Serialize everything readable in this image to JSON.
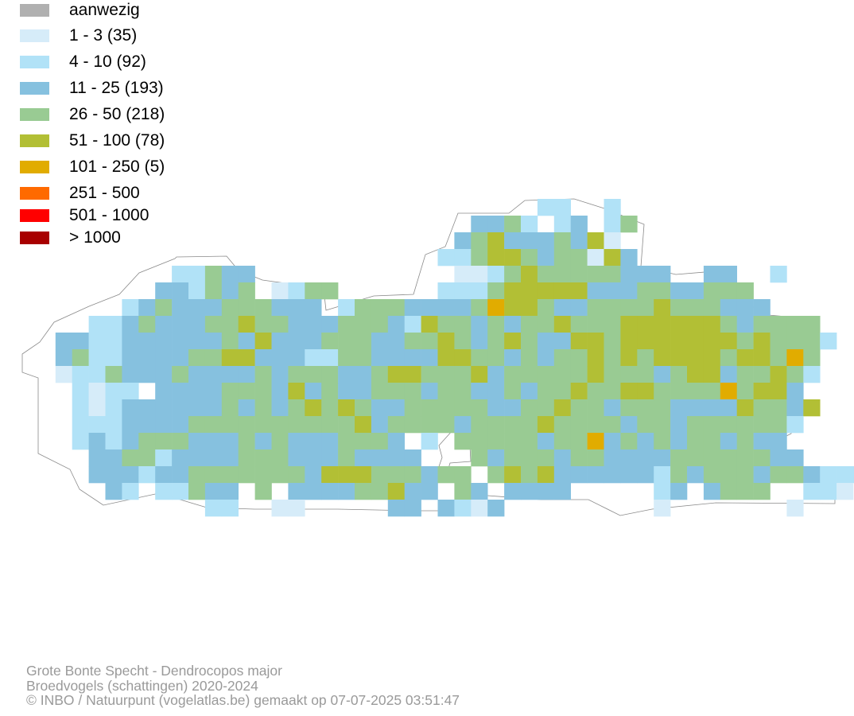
{
  "legend": [
    {
      "label": "aanwezig",
      "color": "#b0b0b0"
    },
    {
      "label": "1 - 3 (35)",
      "color": "#d6ecf9"
    },
    {
      "label": "4 - 10 (92)",
      "color": "#b1e2f7"
    },
    {
      "label": "11 - 25 (193)",
      "color": "#86c1df"
    },
    {
      "label": "26 - 50 (218)",
      "color": "#99cb93"
    },
    {
      "label": "51 - 100 (78)",
      "color": "#b2bf35"
    },
    {
      "label": "101 - 250 (5)",
      "color": "#e1ac00"
    },
    {
      "label": "251 - 500",
      "color": "#ff6a00"
    },
    {
      "label": "501 - 1000",
      "color": "#ff0000"
    },
    {
      "label": "> 1000",
      "color": "#a80000"
    }
  ],
  "credits": {
    "species": "Grote Bonte Specht - Dendrocopos major",
    "dataset": "Broedvogels (schattingen) 2020-2024",
    "copyright": "© INBO / Natuurpunt (vogelatlas.be) gemaakt op 07-07-2025 03:51:47"
  }
}
